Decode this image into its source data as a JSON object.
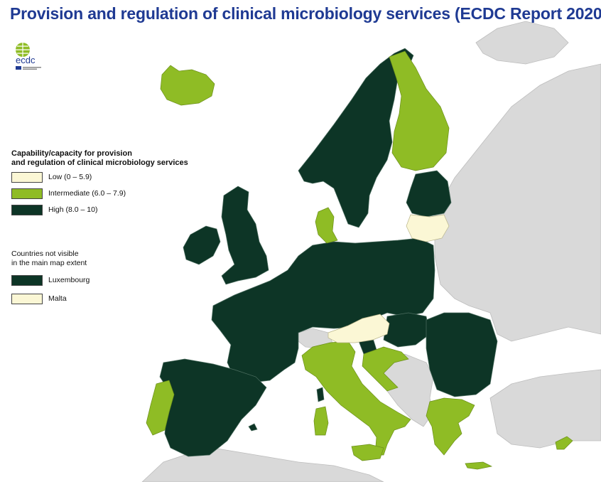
{
  "title": "Provision and regulation of clinical microbiology services (ECDC Report 2020)",
  "logo": {
    "text": "ecdc",
    "icon": "ecdc-globe-logo"
  },
  "legend": {
    "title_line1": "Capability/capacity for provision",
    "title_line2": "and regulation of clinical microbiology services",
    "categories": [
      {
        "label": "Low (0 – 5.9)",
        "color": "#fbf7d5"
      },
      {
        "label": "Intermediate (6.0 – 7.9)",
        "color": "#8fbc25"
      },
      {
        "label": "High (8.0 – 10)",
        "color": "#0d3526"
      }
    ],
    "small_title_line1": "Countries not visible",
    "small_title_line2": "in the main map extent",
    "small_countries": [
      {
        "label": "Luxembourg",
        "color": "#0d3526"
      },
      {
        "label": "Malta",
        "color": "#fbf7d5"
      }
    ]
  },
  "colors": {
    "non_eu": "#d9d9d9",
    "sea": "#ffffff",
    "border": "#7a8a80",
    "title": "#1f3a93"
  }
}
